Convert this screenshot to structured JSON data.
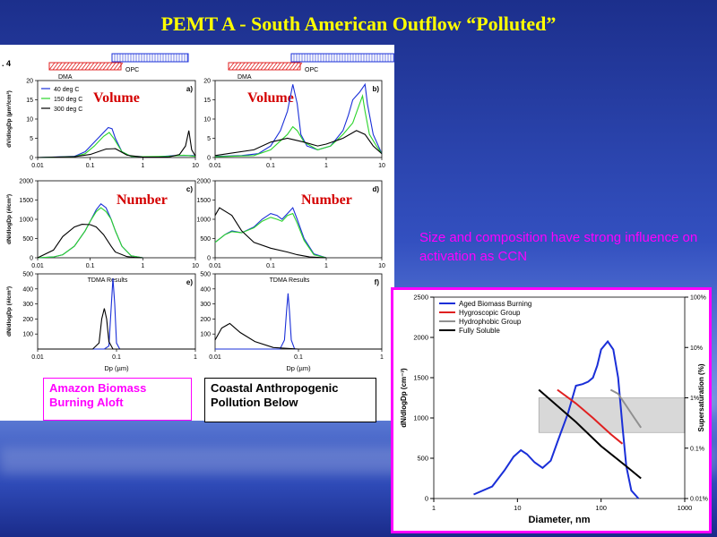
{
  "slide": {
    "title": "PEMT A  - South American Outflow “Polluted”",
    "annotation": "Size and composition have strong influence on activation as CCN"
  },
  "panel_figure": {
    "fig_number_fragment": ". 4",
    "dma_label": "DMA",
    "opc_label": "OPC",
    "footer_boxes": {
      "left": "Amazon Biomass Burning Aloft",
      "right": "Coastal Anthropogenic Pollution Below"
    }
  },
  "colors": {
    "blue": "#1a2fd8",
    "green": "#2bd42b",
    "black": "#000000",
    "red": "#e02020",
    "gray": "#909090",
    "magenta": "#ff00ff",
    "title_yellow": "#ffff00",
    "volume_number_red": "#d40000"
  },
  "chart_data": [
    {
      "type": "line",
      "panel": "a)",
      "overlay_label": "Volume",
      "xlabel": "",
      "ylabel": "dV/dlogDp (µm³/cm³)",
      "xscale": "log",
      "xlim": [
        0.01,
        10
      ],
      "ylim": [
        0,
        20
      ],
      "xticks": [
        "0.01",
        "0.1",
        "1",
        "10"
      ],
      "yticks": [
        "0",
        "5",
        "10",
        "15",
        "20"
      ],
      "legend": [
        "40 deg C",
        "150 deg C",
        "300 deg C"
      ],
      "series": [
        {
          "name": "40 deg C",
          "color": "#1a2fd8",
          "x": [
            0.01,
            0.05,
            0.08,
            0.12,
            0.18,
            0.22,
            0.26,
            0.3,
            0.4,
            0.6,
            1,
            2,
            4,
            6,
            8,
            9,
            10
          ],
          "y": [
            0,
            0.3,
            1.5,
            4,
            6.5,
            7.8,
            7.5,
            5,
            1.5,
            0.3,
            0.2,
            0.2,
            0.5,
            0.5,
            0.5,
            0.5,
            0.3
          ]
        },
        {
          "name": "150 deg C",
          "color": "#2bd42b",
          "x": [
            0.01,
            0.05,
            0.08,
            0.12,
            0.18,
            0.23,
            0.28,
            0.4,
            0.6,
            1,
            3,
            6,
            10
          ],
          "y": [
            0,
            0.2,
            1,
            3,
            5.5,
            6.5,
            5,
            1.5,
            0.3,
            0.2,
            0.3,
            0.6,
            0.3
          ]
        },
        {
          "name": "300 deg C",
          "color": "#000000",
          "x": [
            0.01,
            0.05,
            0.1,
            0.2,
            0.3,
            0.5,
            1,
            3,
            5,
            6.5,
            7.5,
            8.5,
            10
          ],
          "y": [
            0,
            0.2,
            0.8,
            2.2,
            2.3,
            0.6,
            0.1,
            0.1,
            0.8,
            3,
            7,
            2,
            0.4
          ]
        }
      ]
    },
    {
      "type": "line",
      "panel": "b)",
      "overlay_label": "Volume",
      "xlabel": "",
      "ylabel": "",
      "xscale": "log",
      "xlim": [
        0.01,
        10
      ],
      "ylim": [
        0,
        20
      ],
      "xticks": [
        "0.01",
        "0.1",
        "1",
        "10"
      ],
      "yticks": [
        "0",
        "5",
        "10",
        "15",
        "20"
      ],
      "series": [
        {
          "name": "40 deg C",
          "color": "#1a2fd8",
          "x": [
            0.01,
            0.03,
            0.06,
            0.1,
            0.15,
            0.2,
            0.25,
            0.3,
            0.35,
            0.45,
            0.7,
            1.2,
            2,
            2.5,
            3,
            4,
            5,
            5.5,
            7,
            10
          ],
          "y": [
            0.3,
            0.5,
            1,
            3,
            7,
            12,
            19,
            14,
            6,
            3,
            2,
            3,
            7,
            11,
            15,
            17,
            19,
            14,
            6,
            1
          ]
        },
        {
          "name": "150 deg C",
          "color": "#2bd42b",
          "x": [
            0.01,
            0.05,
            0.1,
            0.2,
            0.25,
            0.3,
            0.4,
            0.7,
            1.2,
            2,
            3,
            4,
            4.5,
            5,
            6,
            8,
            10
          ],
          "y": [
            0.2,
            0.5,
            2,
            6,
            8,
            7,
            4,
            2,
            3,
            6,
            9,
            14,
            16,
            12,
            6,
            3,
            1
          ]
        },
        {
          "name": "300 deg C",
          "color": "#000000",
          "x": [
            0.01,
            0.05,
            0.1,
            0.2,
            0.4,
            0.7,
            1,
            2,
            3.5,
            5,
            7,
            10
          ],
          "y": [
            0.5,
            2,
            4,
            5,
            4,
            3,
            3.5,
            5,
            7,
            6,
            3,
            1
          ]
        }
      ]
    },
    {
      "type": "line",
      "panel": "c)",
      "overlay_label": "Number",
      "xlabel": "",
      "ylabel": "dN/dlogDp (#/cm³)",
      "xscale": "log",
      "xlim": [
        0.01,
        10
      ],
      "ylim": [
        0,
        2000
      ],
      "xticks": [
        "0.01",
        "0.1",
        "1",
        "10"
      ],
      "yticks": [
        "0",
        "500",
        "1000",
        "1500",
        "2000"
      ],
      "series": [
        {
          "name": "40 deg C",
          "color": "#1a2fd8",
          "x": [
            0.01,
            0.02,
            0.03,
            0.05,
            0.08,
            0.1,
            0.13,
            0.16,
            0.2,
            0.25,
            0.3,
            0.4,
            0.6,
            1
          ],
          "y": [
            0,
            20,
            80,
            300,
            700,
            950,
            1250,
            1400,
            1300,
            1000,
            700,
            300,
            50,
            0
          ]
        },
        {
          "name": "150 deg C",
          "color": "#2bd42b",
          "x": [
            0.01,
            0.02,
            0.03,
            0.05,
            0.08,
            0.1,
            0.13,
            0.16,
            0.2,
            0.25,
            0.3,
            0.4,
            0.6,
            1
          ],
          "y": [
            0,
            20,
            80,
            300,
            700,
            950,
            1200,
            1300,
            1200,
            1000,
            700,
            300,
            50,
            0
          ]
        },
        {
          "name": "300 deg C",
          "color": "#000000",
          "x": [
            0.01,
            0.02,
            0.03,
            0.05,
            0.07,
            0.1,
            0.13,
            0.18,
            0.25,
            0.3,
            0.5,
            0.7,
            1
          ],
          "y": [
            0,
            200,
            550,
            800,
            870,
            860,
            800,
            600,
            300,
            150,
            30,
            10,
            0
          ]
        }
      ]
    },
    {
      "type": "line",
      "panel": "d)",
      "overlay_label": "Number",
      "xlabel": "",
      "ylabel": "",
      "xscale": "log",
      "xlim": [
        0.01,
        10
      ],
      "ylim": [
        0,
        2000
      ],
      "xticks": [
        "0.01",
        "0.1",
        "1",
        "10"
      ],
      "yticks": [
        "0",
        "500",
        "1000",
        "1500",
        "2000"
      ],
      "series": [
        {
          "name": "40 deg C",
          "color": "#1a2fd8",
          "x": [
            0.01,
            0.015,
            0.02,
            0.03,
            0.05,
            0.07,
            0.1,
            0.13,
            0.16,
            0.2,
            0.25,
            0.3,
            0.4,
            0.6,
            1
          ],
          "y": [
            400,
            600,
            700,
            650,
            800,
            1000,
            1150,
            1100,
            1000,
            1150,
            1300,
            1000,
            500,
            100,
            0
          ]
        },
        {
          "name": "150 deg C",
          "color": "#2bd42b",
          "x": [
            0.01,
            0.015,
            0.02,
            0.03,
            0.05,
            0.07,
            0.1,
            0.13,
            0.16,
            0.2,
            0.25,
            0.3,
            0.4,
            0.6,
            1
          ],
          "y": [
            400,
            600,
            680,
            650,
            780,
            950,
            1050,
            1000,
            950,
            1100,
            1150,
            900,
            450,
            80,
            0
          ]
        },
        {
          "name": "300 deg C",
          "color": "#000000",
          "x": [
            0.01,
            0.012,
            0.02,
            0.03,
            0.05,
            0.1,
            0.2,
            0.3,
            0.5,
            1
          ],
          "y": [
            1100,
            1300,
            1100,
            700,
            400,
            250,
            150,
            80,
            20,
            0
          ]
        }
      ]
    },
    {
      "type": "line",
      "panel": "e)",
      "title": "TDMA Results",
      "xlabel": "Dp (µm)",
      "ylabel": "dN/dlogDp (#/cm³)",
      "xscale": "log",
      "xlim": [
        0.01,
        1
      ],
      "ylim": [
        0,
        500
      ],
      "xticks": [
        "0.01",
        "0.1",
        "1"
      ],
      "yticks": [
        "100",
        "200",
        "300",
        "400",
        "500"
      ],
      "series": [
        {
          "name": "Blue",
          "color": "#1a2fd8",
          "x": [
            0.01,
            0.07,
            0.08,
            0.085,
            0.09,
            0.095,
            0.1,
            0.11,
            0.15,
            1
          ],
          "y": [
            0,
            0,
            20,
            250,
            470,
            300,
            40,
            0,
            0,
            0
          ]
        },
        {
          "name": "Black",
          "color": "#000000",
          "x": [
            0.01,
            0.05,
            0.06,
            0.065,
            0.07,
            0.075,
            0.08,
            0.09,
            1
          ],
          "y": [
            0,
            0,
            40,
            200,
            270,
            200,
            50,
            0,
            0
          ]
        }
      ]
    },
    {
      "type": "line",
      "panel": "f)",
      "title": "TDMA Results",
      "xlabel": "Dp (µm)",
      "ylabel": "",
      "xscale": "log",
      "xlim": [
        0.01,
        1
      ],
      "ylim": [
        0,
        500
      ],
      "xticks": [
        "0.01",
        "0.1",
        "1"
      ],
      "yticks": [
        "100",
        "200",
        "300",
        "400",
        "500"
      ],
      "series": [
        {
          "name": "Blue",
          "color": "#1a2fd8",
          "x": [
            0.01,
            0.06,
            0.068,
            0.072,
            0.075,
            0.078,
            0.082,
            0.09,
            1
          ],
          "y": [
            0,
            0,
            60,
            250,
            370,
            250,
            60,
            0,
            0
          ]
        },
        {
          "name": "Black",
          "color": "#000000",
          "x": [
            0.01,
            0.012,
            0.015,
            0.02,
            0.03,
            0.05,
            0.1,
            1
          ],
          "y": [
            60,
            140,
            170,
            110,
            50,
            10,
            0,
            0
          ]
        }
      ]
    },
    {
      "type": "line",
      "panel": "ccn",
      "xlabel": "Diameter, nm",
      "ylabel": "dN/dlogDp (cm⁻³)",
      "y2label": "Supersaturation (%)",
      "xscale": "log",
      "xlim": [
        1,
        1000
      ],
      "ylim": [
        0,
        2500
      ],
      "xticks": [
        "1",
        "10",
        "100",
        "1000"
      ],
      "yticks": [
        "0",
        "500",
        "1000",
        "1500",
        "2000",
        "2500"
      ],
      "y2scale": "log",
      "y2lim": [
        0.01,
        100
      ],
      "y2ticks": [
        "0.01%",
        "0.1%",
        "1%",
        "10%",
        "100%"
      ],
      "shaded_band_y": [
        820,
        1250
      ],
      "legend": [
        "Aged Biomass Burning",
        "Hygroscopic Group",
        "Hydrophobic Group",
        "Fully Soluble"
      ],
      "series": [
        {
          "name": "Aged Biomass Burning",
          "color": "#1a2fd8",
          "x": [
            3,
            5,
            7,
            9,
            11,
            13,
            16,
            20,
            25,
            30,
            40,
            50,
            60,
            70,
            80,
            90,
            100,
            120,
            140,
            160,
            180,
            200,
            230,
            280
          ],
          "y": [
            50,
            150,
            350,
            520,
            600,
            550,
            450,
            380,
            470,
            700,
            1050,
            1400,
            1420,
            1450,
            1500,
            1650,
            1850,
            1950,
            1850,
            1500,
            900,
            400,
            100,
            0
          ]
        },
        {
          "name": "Hygroscopic Group",
          "color": "#e02020",
          "x": [
            30,
            50,
            80,
            130,
            180
          ],
          "y": [
            1350,
            1180,
            1000,
            800,
            680
          ]
        },
        {
          "name": "Hydrophobic Group",
          "color": "#909090",
          "x": [
            130,
            160,
            200,
            250,
            300
          ],
          "y": [
            1350,
            1300,
            1150,
            1000,
            880
          ]
        },
        {
          "name": "Fully Soluble",
          "color": "#000000",
          "x": [
            18,
            30,
            50,
            100,
            200,
            300
          ],
          "y": [
            1350,
            1150,
            950,
            650,
            400,
            250
          ]
        }
      ]
    }
  ]
}
